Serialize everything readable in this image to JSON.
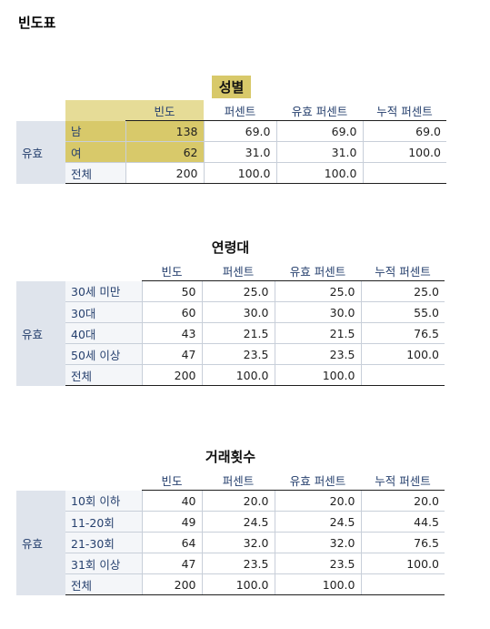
{
  "heading": "빈도표",
  "tables": [
    {
      "title": "성별",
      "columns": [
        "빈도",
        "퍼센트",
        "유효 퍼센트",
        "누적 퍼센트"
      ],
      "group": "유효",
      "rows": [
        {
          "label": "남",
          "values": [
            "138",
            "69.0",
            "69.0",
            "69.0"
          ]
        },
        {
          "label": "여",
          "values": [
            "62",
            "31.0",
            "31.0",
            "100.0"
          ]
        },
        {
          "label": "전체",
          "values": [
            "200",
            "100.0",
            "100.0",
            ""
          ]
        }
      ]
    },
    {
      "title": "연령대",
      "columns": [
        "빈도",
        "퍼센트",
        "유효 퍼센트",
        "누적 퍼센트"
      ],
      "group": "유효",
      "rows": [
        {
          "label": "30세 미만",
          "values": [
            "50",
            "25.0",
            "25.0",
            "25.0"
          ]
        },
        {
          "label": "30대",
          "values": [
            "60",
            "30.0",
            "30.0",
            "55.0"
          ]
        },
        {
          "label": "40대",
          "values": [
            "43",
            "21.5",
            "21.5",
            "76.5"
          ]
        },
        {
          "label": "50세 이상",
          "values": [
            "47",
            "23.5",
            "23.5",
            "100.0"
          ]
        },
        {
          "label": "전체",
          "values": [
            "200",
            "100.0",
            "100.0",
            ""
          ]
        }
      ]
    },
    {
      "title": "거래횟수",
      "columns": [
        "빈도",
        "퍼센트",
        "유효 퍼센트",
        "누적 퍼센트"
      ],
      "group": "유효",
      "rows": [
        {
          "label": "10회 이하",
          "values": [
            "40",
            "20.0",
            "20.0",
            "20.0"
          ]
        },
        {
          "label": "11-20회",
          "values": [
            "49",
            "24.5",
            "24.5",
            "44.5"
          ]
        },
        {
          "label": "21-30회",
          "values": [
            "64",
            "32.0",
            "32.0",
            "76.5"
          ]
        },
        {
          "label": "31회 이상",
          "values": [
            "47",
            "23.5",
            "23.5",
            "100.0"
          ]
        },
        {
          "label": "전체",
          "values": [
            "200",
            "100.0",
            "100.0",
            ""
          ]
        }
      ]
    }
  ],
  "highlight_color": "#d8c96a"
}
